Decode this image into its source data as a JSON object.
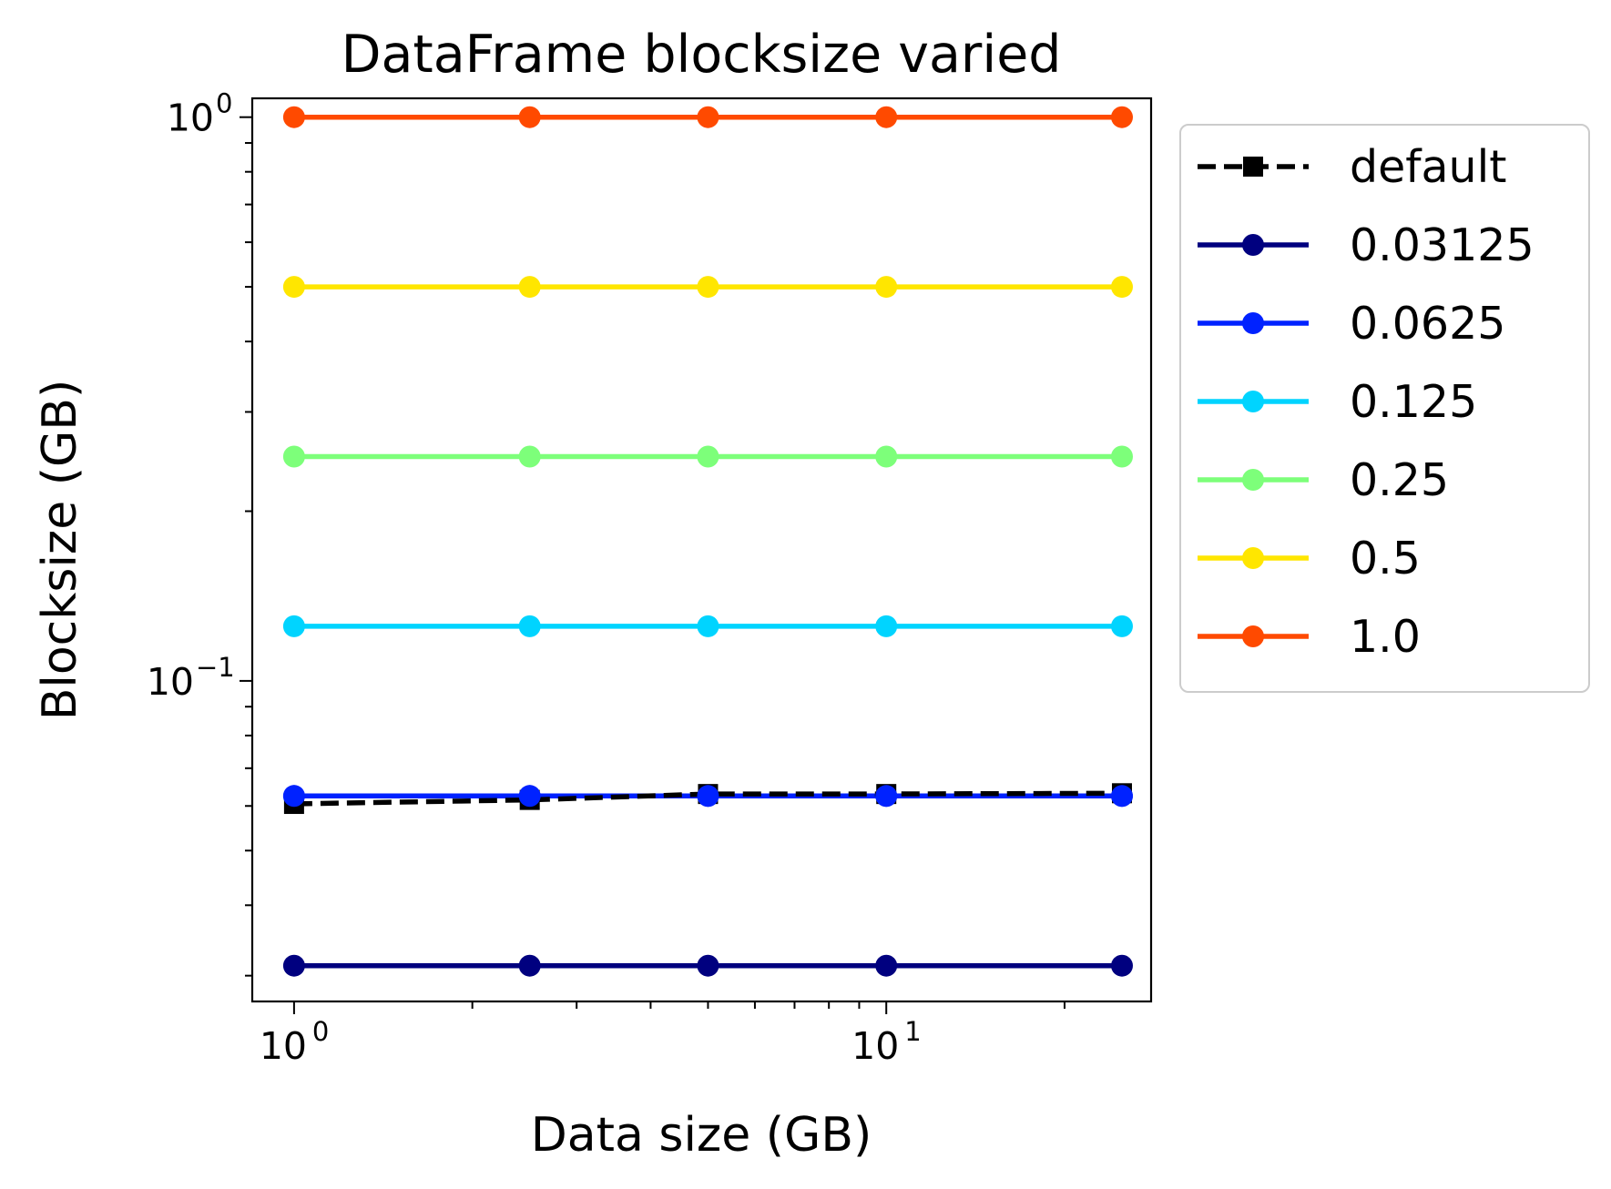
{
  "chart_data": {
    "type": "line",
    "title": "DataFrame blocksize varied",
    "xlabel": "Data size (GB)",
    "ylabel": "Blocksize (GB)",
    "xscale": "log",
    "yscale": "log",
    "xlim": [
      0.85,
      28
    ],
    "ylim": [
      0.027,
      1.08
    ],
    "x_ticks": [
      {
        "value": 1,
        "base": "10",
        "exp": "0"
      },
      {
        "value": 10,
        "base": "10",
        "exp": "1"
      }
    ],
    "y_ticks": [
      {
        "value": 1,
        "base": "10",
        "exp": "0"
      },
      {
        "value": 0.1,
        "base": "10",
        "exp": "−1"
      }
    ],
    "legend_position": "outside-right",
    "x": [
      1,
      2.5,
      5,
      10,
      25
    ],
    "series": [
      {
        "name": "default",
        "color": "#000000",
        "style": "dashed",
        "marker": "square",
        "values": [
          0.0605,
          0.0615,
          0.063,
          0.063,
          0.0632
        ]
      },
      {
        "name": "0.03125",
        "color": "#00007f",
        "style": "solid",
        "marker": "circle",
        "values": [
          0.03125,
          0.03125,
          0.03125,
          0.03125,
          0.03125
        ]
      },
      {
        "name": "0.0625",
        "color": "#0022ff",
        "style": "solid",
        "marker": "circle",
        "values": [
          0.0625,
          0.0625,
          0.0625,
          0.0625,
          0.0625
        ]
      },
      {
        "name": "0.125",
        "color": "#00d4ff",
        "style": "solid",
        "marker": "circle",
        "values": [
          0.125,
          0.125,
          0.125,
          0.125,
          0.125
        ]
      },
      {
        "name": "0.25",
        "color": "#7dff7a",
        "style": "solid",
        "marker": "circle",
        "values": [
          0.25,
          0.25,
          0.25,
          0.25,
          0.25
        ]
      },
      {
        "name": "0.5",
        "color": "#ffe600",
        "style": "solid",
        "marker": "circle",
        "values": [
          0.5,
          0.5,
          0.5,
          0.5,
          0.5
        ]
      },
      {
        "name": "1.0",
        "color": "#ff4a00",
        "style": "solid",
        "marker": "circle",
        "values": [
          1.0,
          1.0,
          1.0,
          1.0,
          1.0
        ]
      }
    ]
  }
}
